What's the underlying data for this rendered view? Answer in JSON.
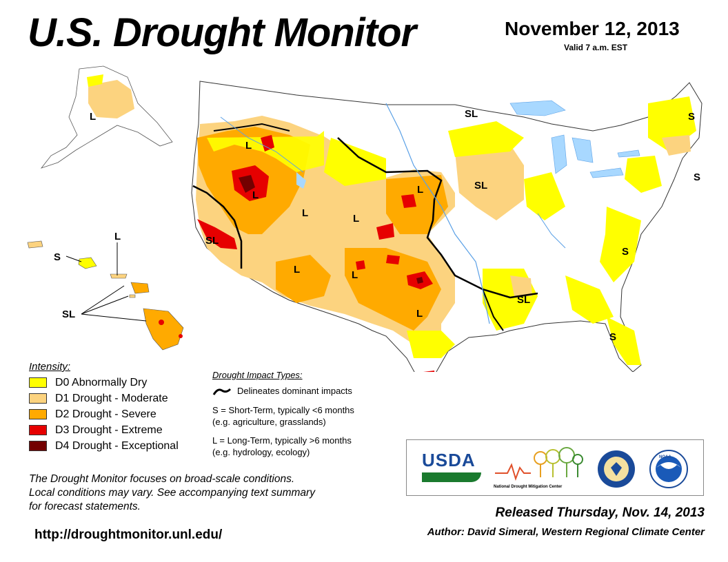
{
  "header": {
    "title": "U.S. Drought Monitor",
    "date": "November 12, 2013",
    "valid": "Valid 7 a.m. EST"
  },
  "legend": {
    "heading": "Intensity:",
    "items": [
      {
        "label": "D0 Abnormally Dry",
        "color": "#ffff00"
      },
      {
        "label": "D1 Drought - Moderate",
        "color": "#fcd37f"
      },
      {
        "label": "D2 Drought - Severe",
        "color": "#ffaa00"
      },
      {
        "label": "D3 Drought - Extreme",
        "color": "#e60000"
      },
      {
        "label": "D4 Drought - Exceptional",
        "color": "#730000"
      }
    ]
  },
  "impact": {
    "heading": "Drought Impact Types:",
    "line_label": "Delineates dominant impacts",
    "short_term": "S = Short-Term, typically <6 months",
    "short_term_eg": "(e.g. agriculture, grasslands)",
    "long_term": "L = Long-Term, typically >6 months",
    "long_term_eg": "(e.g. hydrology, ecology)"
  },
  "note": {
    "line1": "The Drought Monitor focuses on broad-scale conditions.",
    "line2": "Local conditions may vary. See accompanying text summary",
    "line3": "for forecast statements."
  },
  "footer": {
    "url": "http://droughtmonitor.unl.edu/",
    "released": "Released Thursday, Nov. 14, 2013",
    "author": "Author: David Simeral, Western Regional Climate Center"
  },
  "logos": {
    "usda": "USDA",
    "ndmc": "National Drought Mitigation Center",
    "noaa": "NOAA"
  },
  "map_labels": {
    "ak": "L",
    "hi_s": "S",
    "hi_l": "L",
    "hi_sl": "SL",
    "nw": "L",
    "nv": "L",
    "ca": "SL",
    "id": "L",
    "wy": "L",
    "ne": "L",
    "az": "L",
    "nm": "L",
    "tx": "L",
    "nd": "SL",
    "ia": "SL",
    "ms": "SL",
    "va": "S",
    "ga": "S",
    "me": "S",
    "ne_coast": "S"
  },
  "colors": {
    "d0": "#ffff00",
    "d1": "#fcd37f",
    "d2": "#ffaa00",
    "d3": "#e60000",
    "d4": "#730000",
    "water": "#a8d8ff",
    "river": "#5aa0e6"
  }
}
